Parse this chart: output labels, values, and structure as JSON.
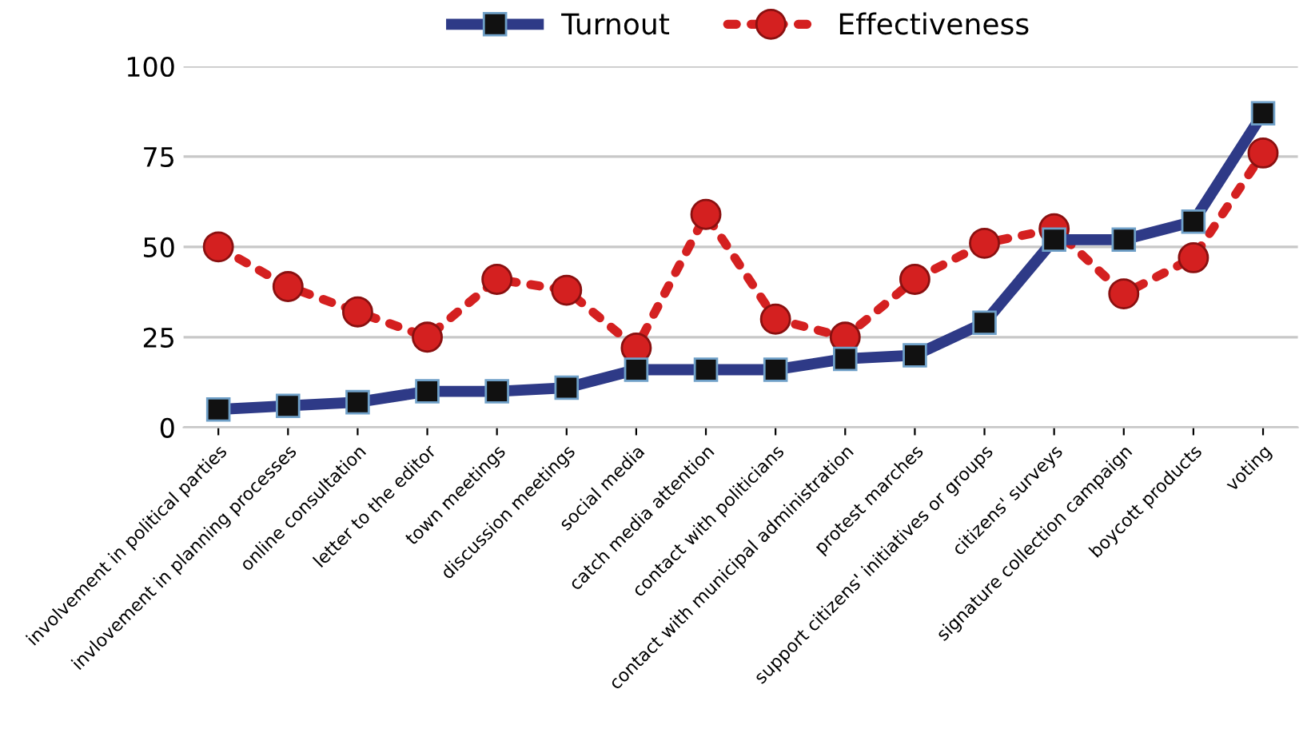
{
  "chart_data": {
    "type": "line",
    "categories": [
      "involvement in political parties",
      "invlovement in planning processes",
      "online consultation",
      "letter to the editor",
      "town meetings",
      "discussion meetings",
      "social media",
      "catch media attention",
      "contact with politicians",
      "contact with municipal administration",
      "protest marches",
      "support citizens' initiatives or groups",
      "citizens' surveys",
      "signature collection campaign",
      "boycott products",
      "voting"
    ],
    "series": [
      {
        "name": "Turnout",
        "color": "#2e3a87",
        "values": [
          5,
          6,
          7,
          10,
          10,
          11,
          16,
          16,
          16,
          19,
          20,
          29,
          52,
          52,
          57,
          87
        ],
        "marker": "square",
        "line_style": "solid"
      },
      {
        "name": "Effectiveness",
        "color": "#d42020",
        "values": [
          50,
          39,
          32,
          25,
          41,
          38,
          22,
          59,
          30,
          25,
          41,
          51,
          55,
          37,
          47,
          76
        ],
        "marker": "circle",
        "line_style": "dotted"
      }
    ],
    "ylim": [
      0,
      100
    ],
    "yticks": [
      0,
      25,
      50,
      75,
      100
    ],
    "grid": "y",
    "legend": "top"
  }
}
